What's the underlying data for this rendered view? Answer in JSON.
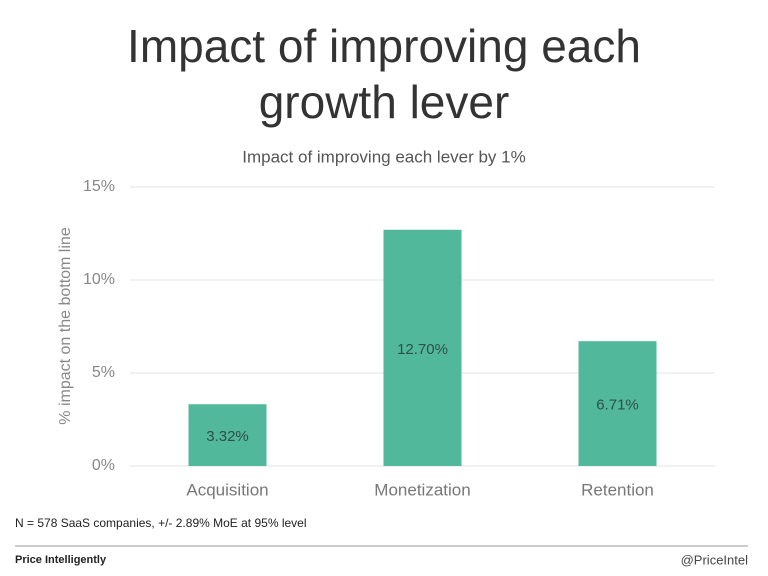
{
  "chart_data": {
    "type": "bar",
    "title": "Impact of improving each growth lever",
    "subtitle": "Impact of improving each lever by 1%",
    "y_label": "% impact on the bottom line",
    "categories": [
      "Acquisition",
      "Monetization",
      "Retention"
    ],
    "values": [
      3.32,
      12.7,
      6.71
    ],
    "value_labels": [
      "3.32%",
      "12.70%",
      "6.71%"
    ],
    "color": "#52b89b",
    "ylim": [
      0,
      15
    ],
    "yticks": [
      {
        "value": 0,
        "label": "0%"
      },
      {
        "value": 5,
        "label": "5%"
      },
      {
        "value": 10,
        "label": "10%"
      },
      {
        "value": 15,
        "label": "15%"
      }
    ],
    "grid": true
  },
  "footer": {
    "note": "N = 578 SaaS companies, +/- 2.89% MoE at 95% level",
    "brand": "Price Intelligently",
    "handle": "@PriceIntel"
  }
}
